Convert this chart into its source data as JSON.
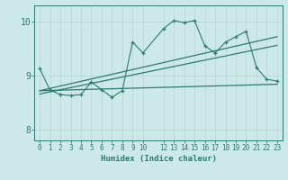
{
  "xlabel": "Humidex (Indice chaleur)",
  "bg_color": "#cde8e8",
  "line_color": "#2d7a6e",
  "grid_color": "#b8d8d5",
  "xlim": [
    -0.5,
    23.5
  ],
  "ylim": [
    7.8,
    10.3
  ],
  "yticks": [
    8,
    9,
    10
  ],
  "xticks": [
    0,
    1,
    2,
    3,
    4,
    5,
    6,
    7,
    8,
    9,
    10,
    12,
    13,
    14,
    15,
    16,
    17,
    18,
    19,
    20,
    21,
    22,
    23
  ],
  "series_volatile": [
    [
      0,
      9.13
    ],
    [
      1,
      8.73
    ],
    [
      2,
      8.65
    ],
    [
      3,
      8.63
    ],
    [
      4,
      8.65
    ],
    [
      5,
      8.88
    ],
    [
      6,
      8.74
    ],
    [
      7,
      8.6
    ],
    [
      8,
      8.72
    ],
    [
      9,
      9.62
    ],
    [
      10,
      9.42
    ],
    [
      12,
      9.87
    ],
    [
      13,
      10.02
    ],
    [
      14,
      9.98
    ],
    [
      15,
      10.02
    ],
    [
      16,
      9.55
    ],
    [
      17,
      9.42
    ],
    [
      18,
      9.62
    ],
    [
      19,
      9.72
    ],
    [
      20,
      9.82
    ],
    [
      21,
      9.15
    ],
    [
      22,
      8.93
    ],
    [
      23,
      8.9
    ]
  ],
  "series_trend_low": [
    [
      0,
      8.66
    ],
    [
      23,
      9.56
    ]
  ],
  "series_trend_high": [
    [
      0,
      8.72
    ],
    [
      23,
      9.72
    ]
  ],
  "series_flat": [
    [
      0,
      8.72
    ],
    [
      23,
      8.84
    ]
  ]
}
